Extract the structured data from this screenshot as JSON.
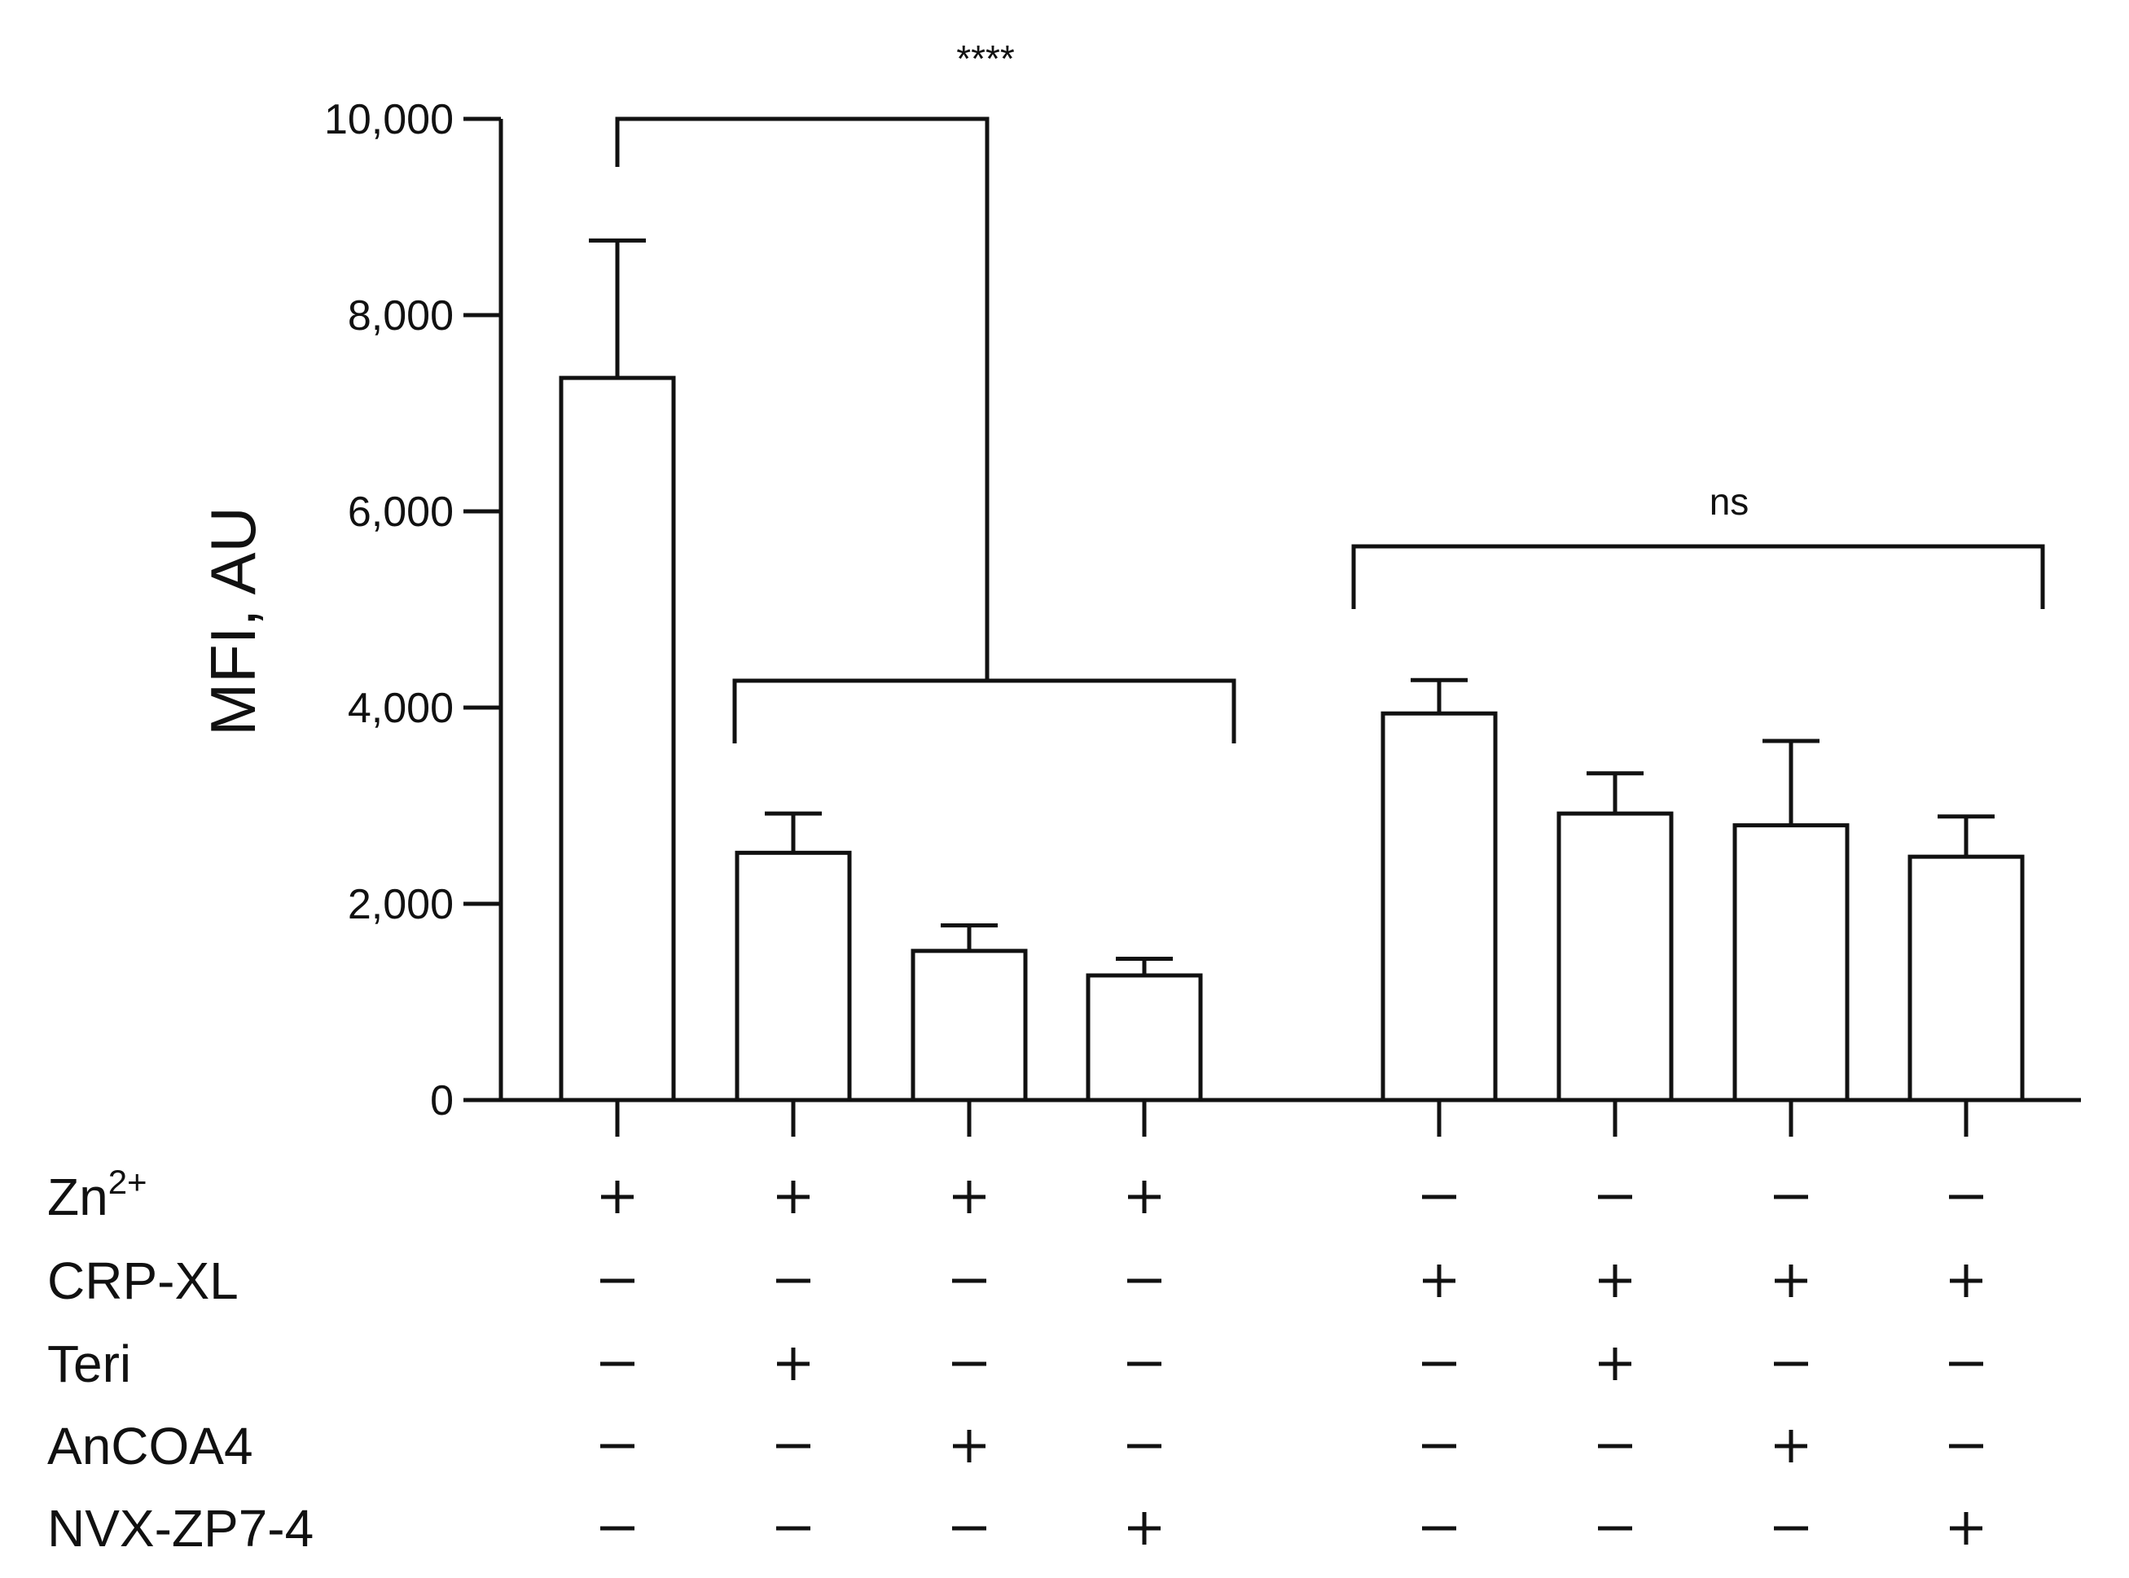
{
  "chart_data": {
    "type": "bar",
    "ylabel": "MFI,  AU",
    "ylim": [
      0,
      10000
    ],
    "yticks": [
      0,
      2000,
      4000,
      6000,
      8000,
      10000
    ],
    "ytick_labels": [
      "0",
      "2,000",
      "4,000",
      "6,000",
      "8,000",
      "10,000"
    ],
    "grid": false,
    "legend": "none",
    "bar_fill": "#ffffff",
    "bar_stroke": "#111111",
    "values": [
      7360,
      2520,
      1520,
      1270,
      3940,
      2920,
      2800,
      2480
    ],
    "errors": [
      1400,
      400,
      260,
      170,
      340,
      410,
      860,
      410
    ],
    "conditions": [
      {
        "label": "Zn2+",
        "label_main": "Zn",
        "label_sup": "2+",
        "signs": [
          "+",
          "+",
          "+",
          "+",
          "−",
          "−",
          "−",
          "−"
        ]
      },
      {
        "label": "CRP-XL",
        "label_main": "CRP-XL",
        "label_sup": "",
        "signs": [
          "−",
          "−",
          "−",
          "−",
          "+",
          "+",
          "+",
          "+"
        ]
      },
      {
        "label": "Teri",
        "label_main": "Teri",
        "label_sup": "",
        "signs": [
          "−",
          "+",
          "−",
          "−",
          "−",
          "+",
          "−",
          "−"
        ]
      },
      {
        "label": "AnCOA4",
        "label_main": "AnCOA4",
        "label_sup": "",
        "signs": [
          "−",
          "−",
          "+",
          "−",
          "−",
          "−",
          "+",
          "−"
        ]
      },
      {
        "label": "NVX-ZP7-4",
        "label_main": "NVX-ZP7-4",
        "label_sup": "",
        "signs": [
          "−",
          "−",
          "−",
          "+",
          "−",
          "−",
          "−",
          "+"
        ]
      }
    ],
    "annotations": [
      {
        "text": "****"
      },
      {
        "text": "ns"
      }
    ]
  }
}
